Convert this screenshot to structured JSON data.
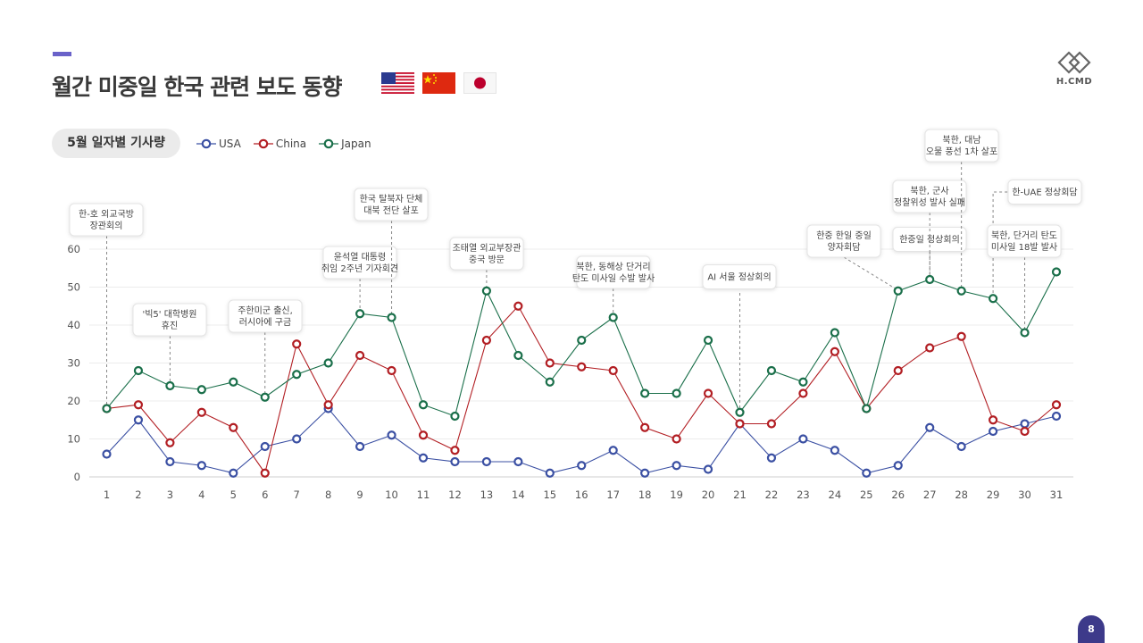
{
  "page": {
    "title": "월간 미중일 한국 관련 보도 동향",
    "page_number": "8"
  },
  "logo": {
    "text": "H.CMD"
  },
  "section": {
    "label": "5월 일자별 기사량"
  },
  "flags": [
    "us-flag-icon",
    "china-flag-icon",
    "japan-flag-icon"
  ],
  "colors": {
    "accent": "#6a62c9",
    "usa": "#3b50a3",
    "china": "#b21e23",
    "japan": "#1a6f4a",
    "page_badge": "#3d3a8a"
  },
  "chart_data": {
    "type": "line",
    "x": [
      1,
      2,
      3,
      4,
      5,
      6,
      7,
      8,
      9,
      10,
      11,
      12,
      13,
      14,
      15,
      16,
      17,
      18,
      19,
      20,
      21,
      22,
      23,
      24,
      25,
      26,
      27,
      28,
      29,
      30,
      31
    ],
    "ylim": [
      0,
      60
    ],
    "yticks": [
      0,
      10,
      20,
      30,
      40,
      50,
      60
    ],
    "grid": true,
    "legend_position": "top-left",
    "series": [
      {
        "name": "USA",
        "color": "#3b50a3",
        "values": [
          6,
          15,
          4,
          3,
          1,
          8,
          10,
          18,
          8,
          11,
          5,
          4,
          4,
          4,
          1,
          3,
          7,
          1,
          3,
          2,
          14,
          5,
          10,
          7,
          1,
          3,
          13,
          8,
          12,
          14,
          16
        ]
      },
      {
        "name": "China",
        "color": "#b21e23",
        "values": [
          18,
          19,
          9,
          17,
          13,
          1,
          35,
          19,
          32,
          28,
          11,
          7,
          36,
          45,
          30,
          29,
          28,
          13,
          10,
          22,
          14,
          14,
          22,
          33,
          18,
          28,
          34,
          37,
          15,
          12,
          19
        ]
      },
      {
        "name": "Japan",
        "color": "#1a6f4a",
        "values": [
          18,
          28,
          24,
          23,
          25,
          21,
          27,
          30,
          43,
          42,
          19,
          16,
          49,
          32,
          25,
          36,
          42,
          22,
          22,
          36,
          17,
          28,
          25,
          38,
          18,
          49,
          52,
          49,
          47,
          38,
          54
        ]
      }
    ],
    "annotations": [
      {
        "x": 1,
        "lines": [
          "한-호 외교국방",
          "장관회의"
        ]
      },
      {
        "x": 3,
        "lines": [
          "'빅5' 대학병원",
          "휴진"
        ]
      },
      {
        "x": 6,
        "lines": [
          "주한미군 출신,",
          "러시아에 구금"
        ]
      },
      {
        "x": 9,
        "lines": [
          "윤석열 대통령",
          "취임 2주년 기자회견"
        ]
      },
      {
        "x": 10,
        "lines": [
          "한국 탈북자 단체",
          "대북 전단 살포"
        ]
      },
      {
        "x": 13,
        "lines": [
          "조태열 외교부장관",
          "중국 방문"
        ]
      },
      {
        "x": 17,
        "lines": [
          "북한, 동해상 단거리",
          "탄도 미사일 수발 발사"
        ]
      },
      {
        "x": 21,
        "lines": [
          "AI 서울 정상회의"
        ]
      },
      {
        "x": 26,
        "lines": [
          "한중 한일 중일",
          "양자회담"
        ]
      },
      {
        "x": 27,
        "lines": [
          "한중일 정상회의"
        ]
      },
      {
        "x": 27,
        "lines": [
          "북한, 군사",
          "정찰위성 발사 실패"
        ]
      },
      {
        "x": 28,
        "lines": [
          "북한, 대남",
          "오물 풍선 1차 살포"
        ]
      },
      {
        "x": 29,
        "lines": [
          "한-UAE 정상회담"
        ]
      },
      {
        "x": 30,
        "lines": [
          "북한, 단거리 탄도",
          "미사일 18발 발사"
        ]
      }
    ]
  }
}
